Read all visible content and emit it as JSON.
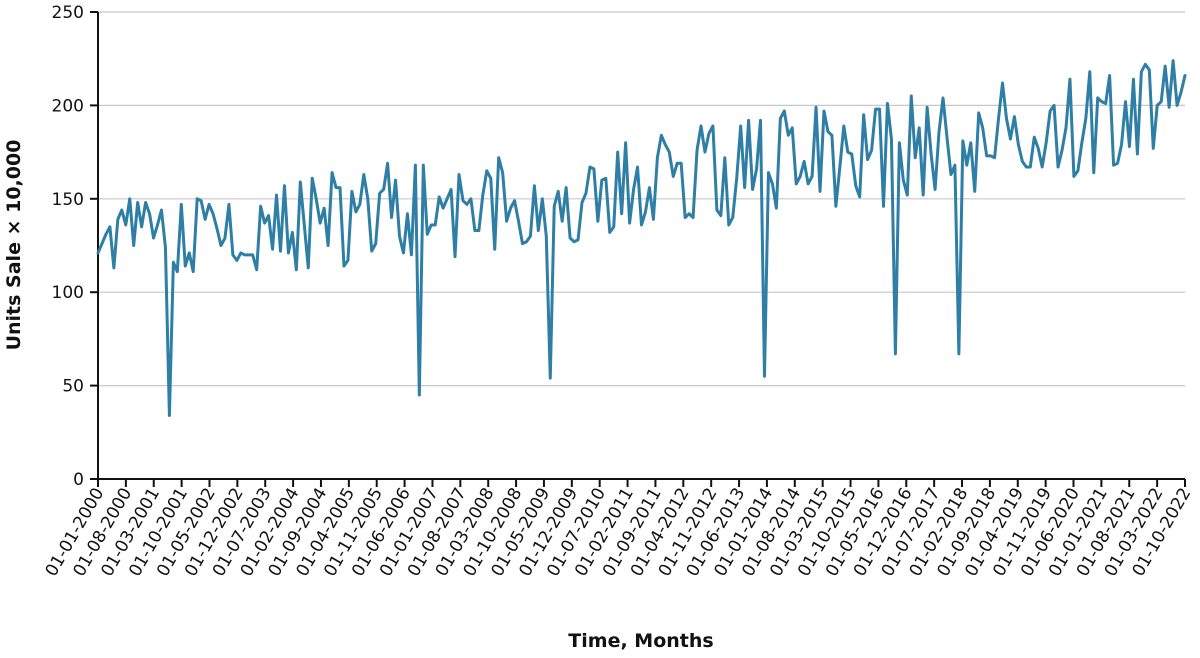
{
  "chart_data": {
    "type": "line",
    "xlabel": "Time, Months",
    "ylabel": "Units Sale × 10,000",
    "ylim": [
      0,
      250
    ],
    "yticks": [
      0,
      50,
      100,
      150,
      200,
      250
    ],
    "grid": "horizontal",
    "line_color": "#2e7ea6",
    "xtick_labels": [
      "01-01-2000",
      "01-08-2000",
      "01-03-2001",
      "01-10-2001",
      "01-05-2002",
      "01-12-2002",
      "01-07-2003",
      "01-02-2004",
      "01-09-2004",
      "01-04-2005",
      "01-11-2005",
      "01-06-2006",
      "01-01-2007",
      "01-08-2007",
      "01-03-2008",
      "01-10-2008",
      "01-05-2009",
      "01-12-2009",
      "01-07-2010",
      "01-02-2011",
      "01-09-2011",
      "01-04-2012",
      "01-11-2012",
      "01-06-2013",
      "01-01-2014",
      "01-08-2014",
      "01-03-2015",
      "01-10-2015",
      "01-05-2016",
      "01-12-2016",
      "01-07-2017",
      "01-02-2018",
      "01-09-2018",
      "01-04-2019",
      "01-11-2019",
      "01-06-2020",
      "01-01-2021",
      "01-08-2021",
      "01-03-2022",
      "01-10-2022"
    ],
    "x_start": "01-01-2000",
    "x_step": "1 month",
    "values": [
      121,
      126,
      131,
      135,
      113,
      139,
      144,
      136,
      150,
      125,
      148,
      135,
      148,
      142,
      129,
      136,
      144,
      124,
      34,
      116,
      111,
      147,
      114,
      121,
      111,
      150,
      149,
      139,
      147,
      142,
      134,
      125,
      129,
      147,
      120,
      117,
      121,
      120,
      120,
      120,
      112,
      146,
      137,
      141,
      123,
      152,
      122,
      157,
      121,
      132,
      112,
      159,
      136,
      113,
      161,
      150,
      137,
      145,
      125,
      164,
      156,
      156,
      114,
      117,
      154,
      143,
      147,
      163,
      150,
      122,
      126,
      153,
      155,
      169,
      140,
      160,
      130,
      121,
      142,
      120,
      168,
      45,
      168,
      131,
      136,
      136,
      151,
      145,
      150,
      155,
      119,
      163,
      149,
      147,
      150,
      133,
      133,
      152,
      165,
      161,
      123,
      172,
      164,
      138,
      145,
      149,
      138,
      126,
      127,
      130,
      157,
      133,
      150,
      130,
      54,
      146,
      154,
      138,
      156,
      129,
      127,
      128,
      148,
      153,
      167,
      166,
      138,
      160,
      161,
      132,
      135,
      175,
      142,
      180,
      137,
      155,
      167,
      136,
      143,
      156,
      139,
      172,
      184,
      179,
      175,
      162,
      169,
      169,
      140,
      142,
      140,
      176,
      189,
      175,
      185,
      189,
      144,
      141,
      172,
      136,
      140,
      161,
      189,
      156,
      192,
      155,
      166,
      192,
      55,
      164,
      158,
      145,
      193,
      197,
      184,
      188,
      158,
      162,
      170,
      158,
      162,
      199,
      154,
      197,
      186,
      184,
      146,
      167,
      189,
      175,
      174,
      157,
      151,
      195,
      171,
      176,
      198,
      198,
      146,
      201,
      182,
      67,
      180,
      160,
      152,
      205,
      172,
      188,
      152,
      199,
      174,
      155,
      186,
      204,
      183,
      163,
      168,
      67,
      181,
      168,
      180,
      154,
      196,
      188,
      173,
      173,
      172,
      193,
      212,
      193,
      182,
      194,
      179,
      170,
      167,
      167,
      183,
      177,
      167,
      180,
      197,
      200,
      167,
      176,
      188,
      214,
      162,
      165,
      180,
      193,
      218,
      164,
      204,
      202,
      201,
      216,
      168,
      169,
      179,
      202,
      178,
      214,
      174,
      218,
      222,
      219,
      177,
      200,
      202,
      221,
      199,
      224,
      200,
      207,
      216
    ]
  }
}
